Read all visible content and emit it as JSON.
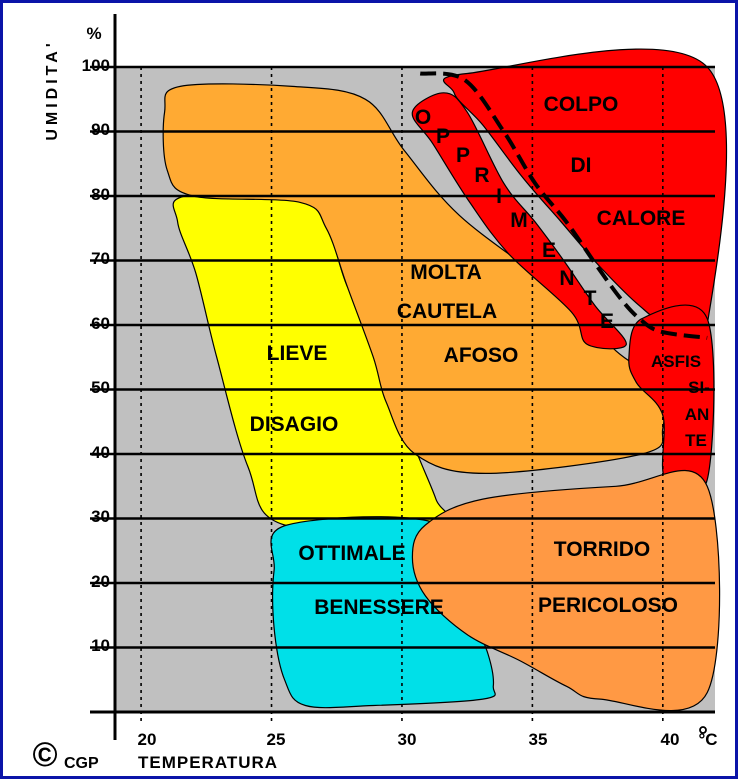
{
  "chart_data": {
    "type": "area",
    "title": "",
    "xlabel": "TEMPERATURA",
    "ylabel": "UMIDITA'",
    "x_unit": "°C",
    "y_unit": "%",
    "xlim": [
      19,
      42
    ],
    "ylim": [
      0,
      100
    ],
    "x_ticks": [
      "20",
      "25",
      "30",
      "35",
      "40"
    ],
    "y_ticks": [
      "10",
      "20",
      "30",
      "40",
      "50",
      "60",
      "70",
      "80",
      "90",
      "100"
    ],
    "grid": true,
    "zones": [
      {
        "name": "lieve-disagio",
        "lines": [
          "LIEVE",
          "DISAGIO"
        ],
        "color": "#ffff00",
        "polygon": [
          [
            21.7,
            80
          ],
          [
            26.1,
            80
          ],
          [
            27.1,
            76
          ],
          [
            27.9,
            66
          ],
          [
            29.3,
            55
          ],
          [
            30.4,
            42
          ],
          [
            31.3,
            33
          ],
          [
            31.5,
            29
          ],
          [
            25.5,
            29
          ],
          [
            24.1,
            38
          ],
          [
            22.9,
            55
          ],
          [
            22.1,
            68
          ],
          [
            21.4,
            76
          ]
        ]
      },
      {
        "name": "ottimale-benessere",
        "lines": [
          "OTTIMALE",
          "BENESSERE"
        ],
        "color": "#00e0e8",
        "polygon": [
          [
            25.6,
            29
          ],
          [
            31.5,
            29
          ],
          [
            32.6,
            16
          ],
          [
            33.3,
            9
          ],
          [
            33.5,
            4
          ],
          [
            33.1,
            2
          ],
          [
            28.9,
            1
          ],
          [
            26.3,
            1
          ],
          [
            25.5,
            5
          ],
          [
            25.1,
            13
          ],
          [
            25.1,
            22
          ]
        ]
      },
      {
        "name": "molta-cautela-afoso",
        "lines": [
          "MOLTA",
          "CAUTELA",
          "AFOSO"
        ],
        "color": "#ffaa33",
        "polygon": [
          [
            21.5,
            97
          ],
          [
            25.8,
            97
          ],
          [
            28.6,
            95
          ],
          [
            30.1,
            87
          ],
          [
            32.2,
            77
          ],
          [
            35.7,
            66
          ],
          [
            38.2,
            56
          ],
          [
            39.8,
            51
          ],
          [
            40.0,
            44
          ],
          [
            39.2,
            40
          ],
          [
            33.2,
            37
          ],
          [
            30.5,
            40
          ],
          [
            29.4,
            48
          ],
          [
            28.9,
            55
          ],
          [
            27.9,
            66
          ],
          [
            27.1,
            75
          ],
          [
            26.1,
            79
          ],
          [
            22.0,
            80
          ],
          [
            21.0,
            84
          ],
          [
            20.9,
            93
          ]
        ]
      },
      {
        "name": "opprimente",
        "lines": [
          "O",
          "P",
          "P",
          "R",
          "I",
          "M",
          "E",
          "N",
          "T",
          "E"
        ],
        "color": "#ff0000",
        "polygon": [
          [
            30.4,
            93
          ],
          [
            31.6,
            96
          ],
          [
            32.5,
            93
          ],
          [
            33.9,
            82
          ],
          [
            35.1,
            76
          ],
          [
            36.2,
            70
          ],
          [
            37.4,
            63
          ],
          [
            38.6,
            57
          ],
          [
            37.1,
            57
          ],
          [
            36.5,
            62
          ],
          [
            34.1,
            71
          ],
          [
            32.6,
            79
          ],
          [
            31.2,
            88
          ]
        ]
      },
      {
        "name": "colpo-di-calore",
        "lines": [
          "COLPO",
          "DI",
          "CALORE"
        ],
        "color": "#ff0000",
        "polygon": [
          [
            32.0,
            96
          ],
          [
            32.5,
            99
          ],
          [
            41.7,
            100
          ],
          [
            41.7,
            60
          ],
          [
            40.2,
            60
          ],
          [
            39.1,
            63
          ],
          [
            37.6,
            69
          ],
          [
            36.1,
            76
          ],
          [
            34.6,
            83
          ],
          [
            33.1,
            91
          ]
        ]
      },
      {
        "name": "asfissiante",
        "lines": [
          "ASFIS",
          "SI-",
          "AN",
          "TE"
        ],
        "color": "#ff0000",
        "polygon": [
          [
            39.2,
            61
          ],
          [
            41.7,
            61
          ],
          [
            41.7,
            36
          ],
          [
            40.1,
            36
          ],
          [
            40.0,
            46
          ],
          [
            39.0,
            51
          ],
          [
            38.7,
            55
          ]
        ]
      },
      {
        "name": "torrido-pericoloso",
        "lines": [
          "TORRIDO",
          "PERICOLOSO"
        ],
        "color": "#ff9944",
        "polygon": [
          [
            33.1,
            33
          ],
          [
            38.2,
            35
          ],
          [
            41.7,
            35
          ],
          [
            41.7,
            3
          ],
          [
            37.6,
            2
          ],
          [
            36.3,
            4
          ],
          [
            34.5,
            8
          ],
          [
            32.5,
            12
          ],
          [
            30.9,
            18
          ],
          [
            30.4,
            24
          ],
          [
            30.9,
            29
          ]
        ]
      }
    ],
    "separator_curve": [
      [
        30.7,
        99
      ],
      [
        32.4,
        98
      ],
      [
        33.9,
        90
      ],
      [
        35.1,
        82
      ],
      [
        36.3,
        76
      ],
      [
        37.5,
        69
      ],
      [
        38.4,
        64
      ],
      [
        39.1,
        61
      ],
      [
        39.9,
        59
      ],
      [
        41.7,
        58
      ]
    ]
  },
  "copyright": {
    "symbol": "©",
    "text": "CGP"
  },
  "colors": {
    "frame": "#0b14a8",
    "plot_bg": "#c0c0c0",
    "line": "#000000",
    "text": "#000000"
  }
}
